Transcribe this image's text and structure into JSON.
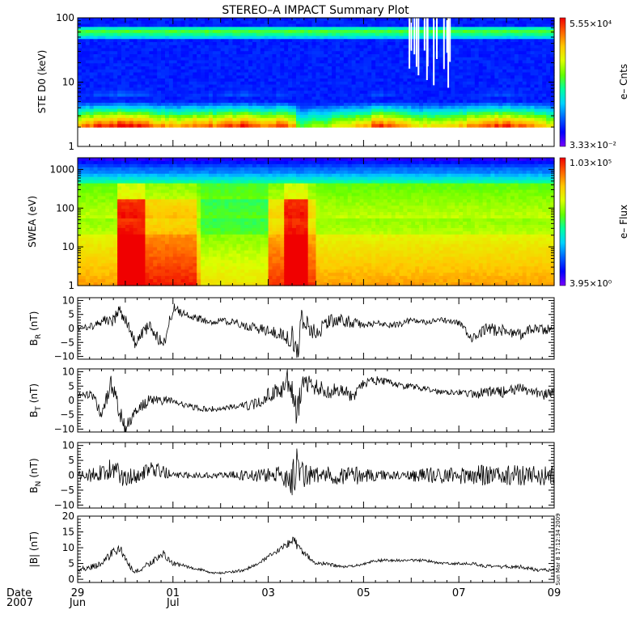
{
  "title": "STEREO–A IMPACT Summary Plot",
  "footer": {
    "date_label": "Date",
    "year_label": "2007",
    "timestamp": "Sun Mar  8 17:12:34 2009"
  },
  "colors": {
    "axes": "#000000",
    "trace": "#000000",
    "colormap": [
      "#7800ff",
      "#0000ff",
      "#0064ff",
      "#00d2ff",
      "#00ffa0",
      "#64ff00",
      "#dcff00",
      "#ffc800",
      "#ff6400",
      "#f00000"
    ]
  },
  "chart_data": [
    {
      "type": "heatmap",
      "panel": "ste",
      "ylabel": "STE D0 (keV)",
      "yscale": "log",
      "ylim": [
        1,
        100
      ],
      "yticks": [
        "1",
        "10",
        "100"
      ],
      "data_floor_keV": 2,
      "colorbar": {
        "max_label": "5.55×10⁴",
        "min_label": "3.33×10⁻²",
        "title": "e– Cnts"
      },
      "bands": [
        {
          "energy_keV": 60,
          "level": 0.52,
          "description": "persistent band"
        },
        {
          "energy_keV": 2.3,
          "level": 0.92,
          "description": "low-energy enhancement"
        }
      ]
    },
    {
      "type": "heatmap",
      "panel": "swea",
      "ylabel": "SWEA (eV)",
      "yscale": "log",
      "ylim": [
        1,
        2000
      ],
      "yticks": [
        "1",
        "10",
        "100",
        "1000"
      ],
      "colorbar": {
        "max_label": "1.03×10⁵",
        "min_label": "3.95×10⁰",
        "title": "e– Flux"
      }
    },
    {
      "type": "line",
      "panel": "br",
      "ylabel": "B",
      "ylabel_sub": "R",
      "yunit": "(nT)",
      "ylim": [
        -11,
        11
      ],
      "yticks": [
        "−10",
        "−5",
        "0",
        "5",
        "10"
      ],
      "x_days": [
        0,
        0.3,
        0.5,
        0.7,
        0.9,
        1.0,
        1.2,
        1.5,
        1.8,
        2.0,
        2.3,
        2.6,
        2.8,
        3.0,
        3.3,
        3.5,
        3.8,
        4.0,
        4.3,
        4.45,
        4.5,
        4.6,
        4.7,
        5.0,
        5.2,
        5.5,
        5.8,
        6.0,
        6.3,
        6.6,
        6.8,
        7.0,
        7.3,
        7.6,
        8.0,
        8.3,
        8.6,
        9.0,
        9.3,
        9.6,
        9.8,
        10.0
      ],
      "y_nT": [
        0,
        1,
        3,
        2,
        7,
        3,
        -5,
        1,
        -6,
        7,
        5,
        3,
        2,
        3,
        2,
        1,
        0,
        -1,
        -2,
        -4,
        -3,
        -11,
        4,
        -2,
        2,
        3,
        2,
        1,
        2,
        1,
        2,
        3,
        2,
        3,
        2,
        -4,
        0,
        -1,
        -2,
        0,
        -1,
        1
      ],
      "noise_nT": [
        0.8,
        1.5,
        2,
        2,
        3,
        2.5,
        2,
        2,
        2.5,
        2.5,
        1,
        1.5,
        1,
        1,
        1.5,
        1.5,
        2,
        2,
        2,
        3,
        4,
        5,
        4,
        3,
        3,
        2.5,
        2,
        1,
        1,
        1,
        1.5,
        1,
        1,
        1,
        1,
        2,
        2.5,
        2,
        2,
        2,
        2,
        1.5
      ]
    },
    {
      "type": "line",
      "panel": "bt",
      "ylabel": "B",
      "ylabel_sub": "T",
      "yunit": "(nT)",
      "ylim": [
        -11,
        11
      ],
      "yticks": [
        "−10",
        "−5",
        "0",
        "5",
        "10"
      ],
      "x_days": [
        0,
        0.3,
        0.5,
        0.7,
        0.9,
        1.0,
        1.2,
        1.5,
        1.8,
        2.0,
        2.3,
        2.6,
        2.8,
        3.0,
        3.3,
        3.5,
        3.8,
        4.0,
        4.3,
        4.45,
        4.5,
        4.6,
        4.7,
        5.0,
        5.2,
        5.5,
        5.8,
        6.0,
        6.3,
        6.6,
        6.8,
        7.0,
        7.3,
        7.6,
        8.0,
        8.3,
        8.6,
        9.0,
        9.3,
        9.6,
        9.8,
        10.0
      ],
      "y_nT": [
        2,
        2,
        -5,
        6,
        -5,
        -10,
        -4,
        0,
        0,
        0,
        -2,
        -3,
        -3,
        -3,
        -2,
        -2,
        -1,
        2,
        4,
        8,
        6,
        -6,
        6,
        5,
        3,
        4,
        1,
        6,
        7,
        6,
        5,
        5,
        4,
        3,
        3,
        2,
        3,
        3,
        4,
        3,
        2,
        3
      ],
      "noise_nT": [
        0.8,
        1.5,
        2.5,
        3,
        3,
        2.5,
        2,
        2,
        1.5,
        1,
        1,
        1,
        1,
        1,
        1,
        1.5,
        2,
        2.5,
        3,
        5,
        6,
        6,
        5,
        3,
        3,
        2.5,
        2,
        2,
        1.5,
        1,
        1,
        1,
        1,
        1,
        1,
        1.5,
        2,
        2,
        2,
        2,
        2,
        1.5
      ]
    },
    {
      "type": "line",
      "panel": "bn",
      "ylabel": "B",
      "ylabel_sub": "N",
      "yunit": "(nT)",
      "ylim": [
        -11,
        11
      ],
      "yticks": [
        "−10",
        "−5",
        "0",
        "5",
        "10"
      ],
      "x_days": [
        0,
        0.3,
        0.5,
        0.7,
        0.9,
        1.0,
        1.2,
        1.5,
        1.8,
        2.0,
        2.3,
        2.6,
        2.8,
        3.0,
        3.3,
        3.5,
        3.8,
        4.0,
        4.3,
        4.45,
        4.5,
        4.6,
        4.7,
        5.0,
        5.2,
        5.5,
        5.8,
        6.0,
        6.3,
        6.6,
        6.8,
        7.0,
        7.3,
        7.6,
        8.0,
        8.3,
        8.6,
        9.0,
        9.3,
        9.6,
        9.8,
        10.0
      ],
      "y_nT": [
        0,
        0,
        1,
        2,
        0,
        -1,
        0,
        2,
        1,
        0,
        0,
        0,
        0,
        0,
        0,
        0,
        0,
        0,
        0,
        0,
        -2,
        3,
        0,
        0,
        0,
        0,
        0,
        0,
        0,
        0,
        0,
        0,
        0,
        0,
        0,
        0,
        0,
        0,
        0,
        0,
        0,
        0
      ],
      "noise_nT": [
        1.5,
        2.5,
        3,
        3.5,
        3.5,
        3,
        3,
        2.5,
        2.5,
        1,
        1,
        1,
        1,
        1,
        1.5,
        2,
        2.5,
        2.5,
        3,
        6,
        7,
        7,
        5,
        3,
        3,
        3,
        3.5,
        2.5,
        2,
        1.5,
        1.5,
        2,
        2.5,
        3,
        3,
        3.5,
        3.5,
        3.5,
        3.5,
        3.5,
        3.5,
        3
      ]
    },
    {
      "type": "line",
      "panel": "bmag",
      "ylabel": "|B| (nT)",
      "ylim": [
        -1,
        20
      ],
      "yticks": [
        "0",
        "5",
        "10",
        "15",
        "20"
      ],
      "x_days": [
        0,
        0.3,
        0.5,
        0.7,
        0.9,
        1.0,
        1.2,
        1.5,
        1.8,
        2.0,
        2.3,
        2.6,
        2.8,
        3.0,
        3.3,
        3.5,
        3.8,
        4.0,
        4.3,
        4.45,
        4.5,
        4.6,
        4.7,
        5.0,
        5.2,
        5.5,
        5.8,
        6.0,
        6.3,
        6.6,
        6.8,
        7.0,
        7.3,
        7.6,
        8.0,
        8.3,
        8.6,
        9.0,
        9.3,
        9.6,
        9.8,
        10.0
      ],
      "y_nT": [
        3,
        4,
        5,
        8,
        10,
        6,
        2,
        5,
        8,
        5,
        4,
        3,
        2,
        2,
        2.5,
        3,
        5,
        7,
        10,
        12,
        13,
        11,
        9,
        5,
        5,
        4,
        4,
        5,
        6,
        6,
        6,
        6,
        6,
        5,
        5,
        5,
        4,
        4,
        4,
        3,
        3,
        3
      ],
      "noise_nT": [
        0.6,
        1,
        1,
        1.5,
        1.5,
        1.2,
        0.8,
        1,
        1.2,
        0.8,
        0.5,
        0.4,
        0.3,
        0.3,
        0.4,
        0.5,
        0.6,
        0.8,
        1,
        1.5,
        1.8,
        1.5,
        1,
        0.7,
        0.6,
        0.5,
        0.5,
        0.5,
        0.5,
        0.4,
        0.4,
        0.4,
        0.4,
        0.4,
        0.4,
        0.5,
        0.6,
        0.6,
        0.6,
        0.6,
        0.6,
        0.5
      ]
    }
  ],
  "x_axis": {
    "days_span": 10,
    "ticks": [
      {
        "day": 0,
        "label": "29",
        "sub": "Jun"
      },
      {
        "day": 2,
        "label": "01",
        "sub": "Jul"
      },
      {
        "day": 4,
        "label": "03",
        "sub": ""
      },
      {
        "day": 6,
        "label": "05",
        "sub": ""
      },
      {
        "day": 8,
        "label": "07",
        "sub": ""
      },
      {
        "day": 10,
        "label": "09",
        "sub": ""
      }
    ]
  }
}
